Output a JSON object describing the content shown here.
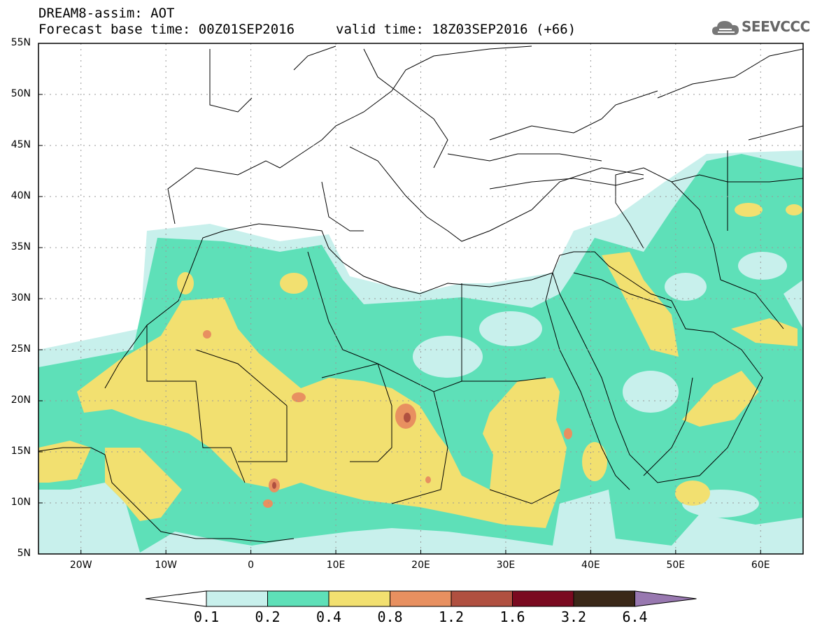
{
  "header": {
    "line1": "DREAM8-assim: AOT",
    "line2": "Forecast base time: 00Z01SEP2016",
    "line3": "valid time: 18Z03SEP2016 (+66)"
  },
  "logo": {
    "text": "SEEVCCC"
  },
  "map": {
    "lon_range": [
      -25,
      65
    ],
    "lat_range": [
      5,
      55
    ],
    "lat_ticks": [
      "5N",
      "10N",
      "15N",
      "20N",
      "25N",
      "30N",
      "35N",
      "40N",
      "45N",
      "50N",
      "55N"
    ],
    "lon_ticks": [
      "20W",
      "10W",
      "0",
      "10E",
      "20E",
      "30E",
      "40E",
      "50E",
      "60E"
    ],
    "grid": true
  },
  "colorbar": {
    "labels": [
      "0.1",
      "0.2",
      "0.4",
      "0.8",
      "1.2",
      "1.6",
      "3.2",
      "6.4"
    ],
    "colors": [
      "#c8f0ec",
      "#5ee0b8",
      "#f2e070",
      "#e89060",
      "#b05040",
      "#7a0a20",
      "#3a2818",
      "#9878b0"
    ]
  }
}
